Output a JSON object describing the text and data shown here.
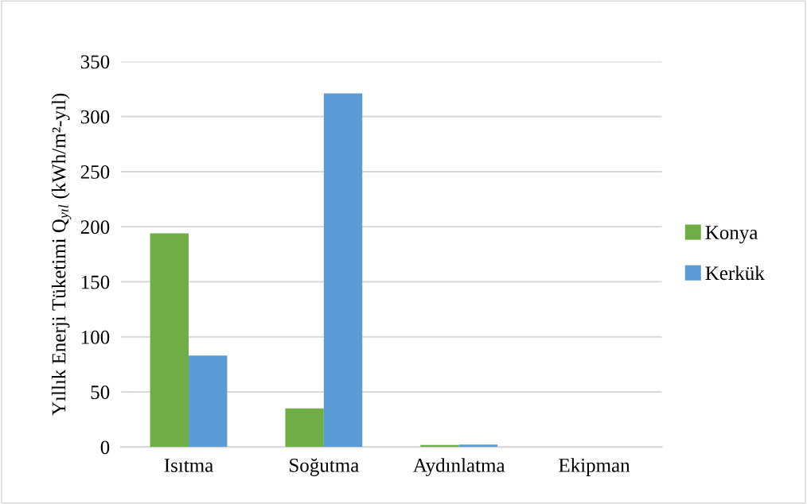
{
  "chart_data": {
    "type": "bar",
    "ylabel": "Yıllık Enerji Tüketimi Q$_{yıl}$ (kWh/m²-yıl)",
    "categories": [
      "Isıtma",
      "Soğutma",
      "Aydınlatma",
      "Ekipman"
    ],
    "series": [
      {
        "name": "Konya",
        "color": "#70ad47",
        "values": [
          194,
          35,
          1.8,
          null
        ]
      },
      {
        "name": "Kerkük",
        "color": "#5b9bd5",
        "values": [
          83,
          321,
          2.3,
          null
        ]
      }
    ],
    "ylim": [
      0,
      350
    ],
    "yticks": [
      0,
      50,
      100,
      150,
      200,
      250,
      300,
      350
    ],
    "grid": "y",
    "legend": "right"
  }
}
